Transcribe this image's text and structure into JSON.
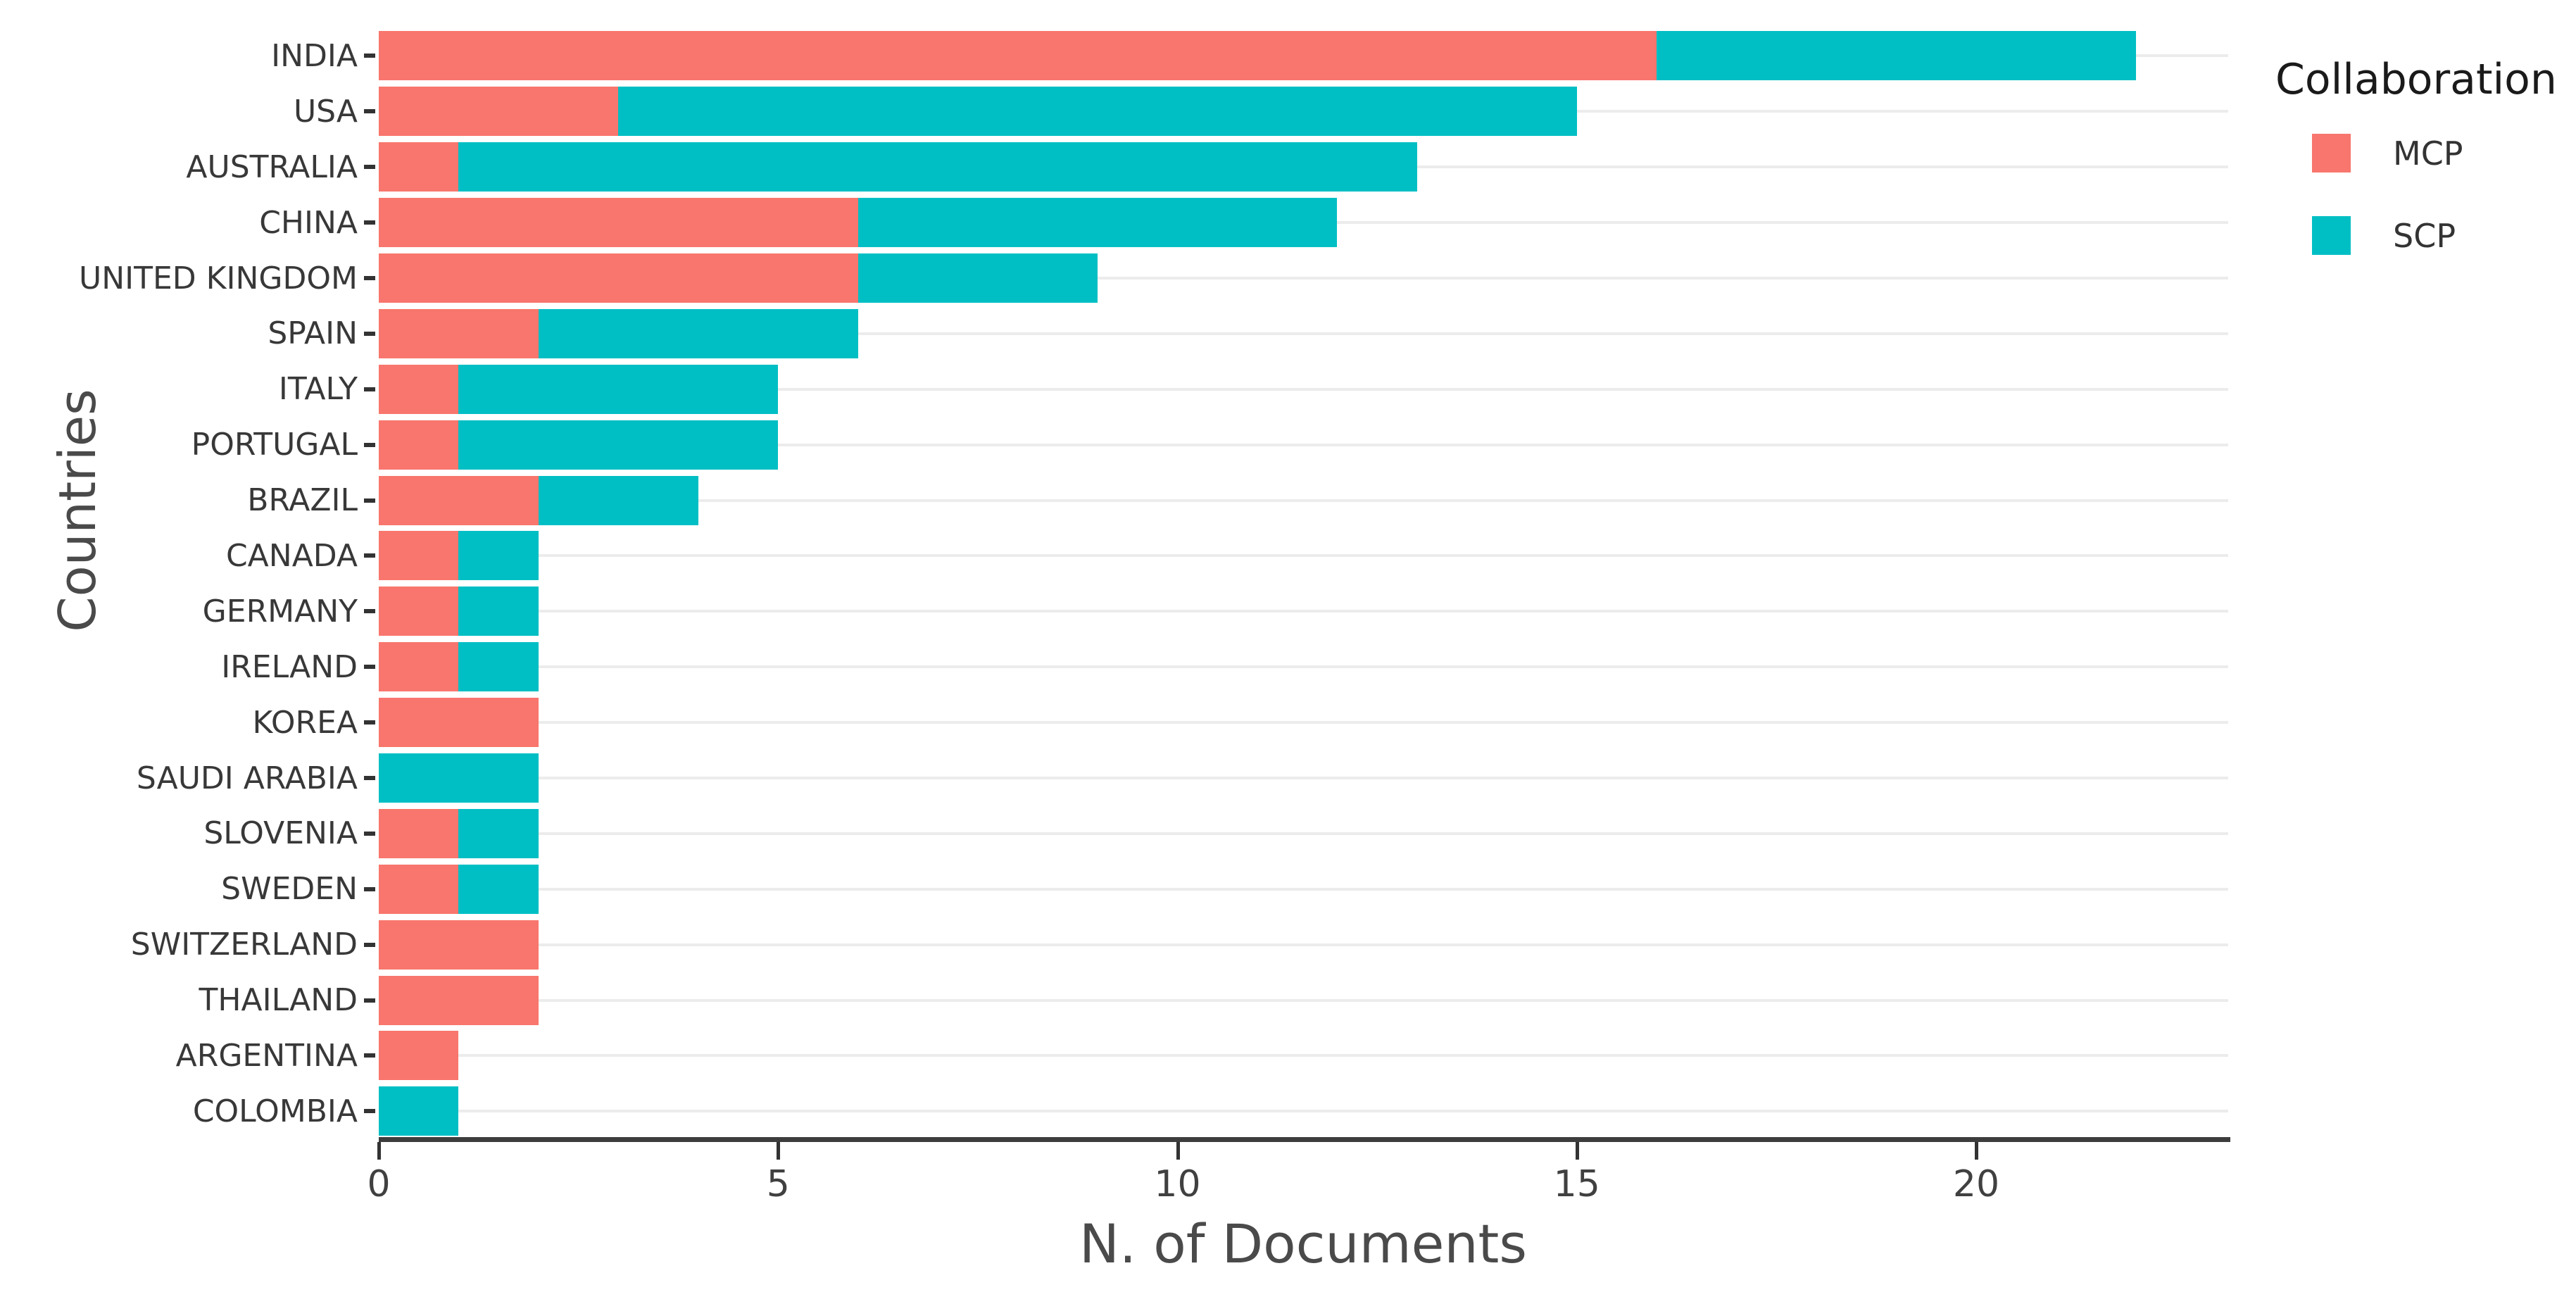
{
  "chart_data": {
    "type": "bar",
    "orientation": "horizontal",
    "stacked": true,
    "title": "",
    "xlabel": "N. of Documents",
    "ylabel": "Countries",
    "categories": [
      "INDIA",
      "USA",
      "AUSTRALIA",
      "CHINA",
      "UNITED KINGDOM",
      "SPAIN",
      "ITALY",
      "PORTUGAL",
      "BRAZIL",
      "CANADA",
      "GERMANY",
      "IRELAND",
      "KOREA",
      "SAUDI ARABIA",
      "SLOVENIA",
      "SWEDEN",
      "SWITZERLAND",
      "THAILAND",
      "ARGENTINA",
      "COLOMBIA"
    ],
    "series": [
      {
        "name": "MCP",
        "color": "#F8766D",
        "values": [
          16,
          3,
          1,
          6,
          6,
          2,
          1,
          1,
          2,
          1,
          1,
          1,
          2,
          0,
          1,
          1,
          2,
          2,
          1,
          0
        ]
      },
      {
        "name": "SCP",
        "color": "#00BFC4",
        "values": [
          6,
          12,
          12,
          6,
          3,
          4,
          4,
          4,
          2,
          1,
          1,
          1,
          0,
          2,
          1,
          1,
          0,
          0,
          0,
          1
        ]
      }
    ],
    "totals": [
      22,
      15,
      13,
      12,
      9,
      6,
      5,
      5,
      4,
      2,
      2,
      2,
      2,
      2,
      2,
      2,
      2,
      2,
      1,
      1
    ],
    "x_ticks": [
      0,
      5,
      10,
      15,
      20
    ],
    "xlim": [
      0,
      23.2
    ],
    "grid": "category gridlines (light gray, horizontal rows), no vertical gridlines",
    "legend": {
      "title": "Collaboration",
      "position": "top-right",
      "entries": [
        {
          "label": "MCP",
          "color": "#F8766D"
        },
        {
          "label": "SCP",
          "color": "#00BFC4"
        }
      ]
    },
    "colors": {
      "mcp": "#F8766D",
      "scp": "#00BFC4",
      "axis_line": "#3d3d3d",
      "gridline": "#ececec",
      "tick_label": "#404040",
      "category_label": "#383838",
      "axis_title": "#4a4a4a",
      "legend_title": "#1a1a1a"
    }
  }
}
